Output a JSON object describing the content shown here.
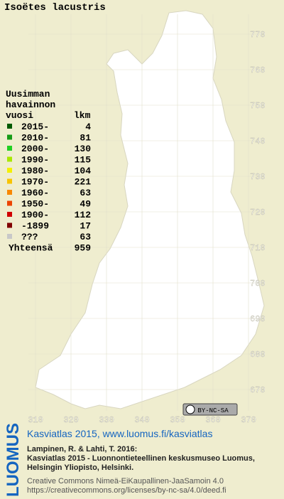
{
  "title": "Isoëtes lacustris",
  "legend": {
    "heading": [
      "Uusimman",
      "havainnon"
    ],
    "subheading": "vuosi",
    "count_heading": "lkm",
    "items": [
      {
        "label": "2015-",
        "count": 4,
        "color": "#005a00"
      },
      {
        "label": "2010-",
        "count": 81,
        "color": "#169b16"
      },
      {
        "label": "2000-",
        "count": 130,
        "color": "#22d022"
      },
      {
        "label": "1990-",
        "count": 115,
        "color": "#a8e800"
      },
      {
        "label": "1980-",
        "count": 104,
        "color": "#f4f000"
      },
      {
        "label": "1970-",
        "count": 221,
        "color": "#f8c400"
      },
      {
        "label": "1960-",
        "count": 63,
        "color": "#f88800"
      },
      {
        "label": "1950-",
        "count": 49,
        "color": "#ec4400"
      },
      {
        "label": "1900-",
        "count": 112,
        "color": "#d00000"
      },
      {
        "label": "-1899",
        "count": 17,
        "color": "#800000"
      },
      {
        "label": "???",
        "count": 63,
        "color": "#c8c8c8"
      }
    ],
    "total_label": "Yhteensä",
    "total": 959
  },
  "map": {
    "y_labels": [
      770,
      760,
      750,
      740,
      730,
      720,
      710,
      700,
      690,
      680,
      670
    ],
    "x_labels": [
      310,
      320,
      330,
      340,
      350,
      360,
      370
    ]
  },
  "license_badge": "BY-NC-SA",
  "footer": {
    "logo": "LUOMUS",
    "link": "Kasviatlas 2015, www.luomus.fi/kasviatlas",
    "citation": [
      "Lampinen, R. & Lahti, T. 2016:",
      "Kasviatlas 2015 - Luonnontieteellinen keskusmuseo Luomus,",
      "Helsingin Yliopisto, Helsinki."
    ],
    "license": [
      "Creative Commons Nimeä-EiKaupallinen-JaaSamoin 4.0",
      "https://creativecommons.org/licenses/by-nc-sa/4.0/deed.fi"
    ]
  }
}
